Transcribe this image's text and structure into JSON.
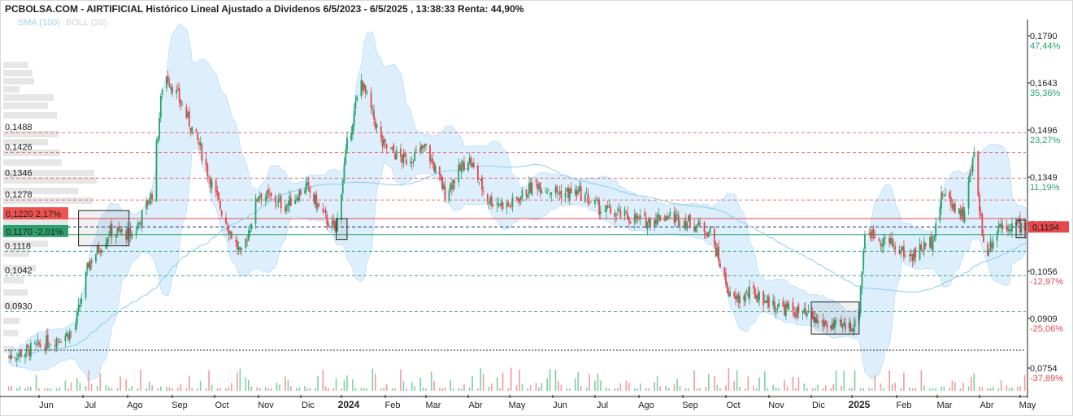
{
  "header": {
    "title": "PCBOLSA.COM - AIRTIFICIAL Histórico Lineal Ajustado a Dividenos 6/5/2023 - 6/5/2025 , 13:38:33 Renta: 44,90%",
    "sma_label": "SMA (100)",
    "boll_label": "BOLL (20)"
  },
  "colors": {
    "up": "#26a269",
    "down": "#e5474b",
    "band_fill": "#cfe8fb",
    "sma": "#8ccbee",
    "resistance": "#e5474b",
    "support": "#26a269",
    "current_price_bg": "#e5474b",
    "support_bg": "#2e9e6b",
    "resistance_bg": "#ef5350"
  },
  "right_axis": [
    {
      "price": "0,1790",
      "pct": "47,44%",
      "pct_color": "#26a269"
    },
    {
      "price": "0,1643",
      "pct": "35,36%",
      "pct_color": "#26a269"
    },
    {
      "price": "0,1496",
      "pct": "23,27%",
      "pct_color": "#26a269"
    },
    {
      "price": "0,1349",
      "pct": "11,19%",
      "pct_color": "#26a269"
    },
    {
      "price": "0,1203",
      "pct": "",
      "pct_color": "#26a269"
    },
    {
      "price": "0,1056",
      "pct": "-12,97%",
      "pct_color": "#e5474b"
    },
    {
      "price": "0,0909",
      "pct": "-25,06%",
      "pct_color": "#e5474b"
    },
    {
      "price": "0,0754",
      "pct": "-37,89%",
      "pct_color": "#e5474b"
    }
  ],
  "current_price_tag": "0,1194",
  "left_levels": [
    {
      "label": "0,1488",
      "kind": "resistance"
    },
    {
      "label": "0,1426",
      "kind": "resistance"
    },
    {
      "label": "0,1346",
      "kind": "resistance"
    },
    {
      "label": "0,1278",
      "kind": "resistance"
    },
    {
      "label": "0,1118",
      "kind": "support"
    },
    {
      "label": "0,1042",
      "kind": "support"
    },
    {
      "label": "0,0930",
      "kind": "support"
    }
  ],
  "resistance_tag": {
    "price": "0,1220",
    "pct": "2,17%"
  },
  "support_tag": {
    "price": "0,1170",
    "pct": "-2,01%"
  },
  "x_axis": [
    "Jun",
    "Jul",
    "Ago",
    "Sep",
    "Oct",
    "Nov",
    "Dic",
    "2024",
    "Feb",
    "Mar",
    "Abr",
    "May",
    "Jun",
    "Jul",
    "Ago",
    "Sep",
    "Oct",
    "Nov",
    "Dic",
    "2025",
    "Feb",
    "Mar",
    "Abr",
    "May"
  ],
  "x_axis_bold": [
    "2024",
    "2025"
  ],
  "chart_data": {
    "type": "candlestick",
    "title": "PCBOLSA.COM - AIRTIFICIAL Histórico Lineal Ajustado a Dividenos 6/5/2023 - 6/5/2025 , 13:38:33 Renta: 44,90%",
    "ylim": [
      0.0735,
      0.181
    ],
    "grid": false,
    "series_close": [
      {
        "date": "2023-05-10",
        "close": 0.079
      },
      {
        "date": "2023-05-25",
        "close": 0.081
      },
      {
        "date": "2023-06-10",
        "close": 0.084
      },
      {
        "date": "2023-06-25",
        "close": 0.087
      },
      {
        "date": "2023-07-05",
        "close": 0.108
      },
      {
        "date": "2023-07-20",
        "close": 0.118
      },
      {
        "date": "2023-08-05",
        "close": 0.117
      },
      {
        "date": "2023-08-18",
        "close": 0.13
      },
      {
        "date": "2023-08-26",
        "close": 0.168
      },
      {
        "date": "2023-09-05",
        "close": 0.16
      },
      {
        "date": "2023-09-20",
        "close": 0.145
      },
      {
        "date": "2023-10-01",
        "close": 0.13
      },
      {
        "date": "2023-10-10",
        "close": 0.12
      },
      {
        "date": "2023-10-20",
        "close": 0.11
      },
      {
        "date": "2023-11-01",
        "close": 0.13
      },
      {
        "date": "2023-11-20",
        "close": 0.126
      },
      {
        "date": "2023-12-05",
        "close": 0.132
      },
      {
        "date": "2023-12-20",
        "close": 0.122
      },
      {
        "date": "2023-12-28",
        "close": 0.118
      },
      {
        "date": "2024-01-05",
        "close": 0.145
      },
      {
        "date": "2024-01-15",
        "close": 0.165
      },
      {
        "date": "2024-01-30",
        "close": 0.145
      },
      {
        "date": "2024-02-15",
        "close": 0.14
      },
      {
        "date": "2024-03-01",
        "close": 0.144
      },
      {
        "date": "2024-03-15",
        "close": 0.13
      },
      {
        "date": "2024-04-01",
        "close": 0.141
      },
      {
        "date": "2024-04-15",
        "close": 0.128
      },
      {
        "date": "2024-05-01",
        "close": 0.126
      },
      {
        "date": "2024-05-20",
        "close": 0.133
      },
      {
        "date": "2024-06-05",
        "close": 0.13
      },
      {
        "date": "2024-06-20",
        "close": 0.13
      },
      {
        "date": "2024-07-05",
        "close": 0.125
      },
      {
        "date": "2024-07-20",
        "close": 0.123
      },
      {
        "date": "2024-08-05",
        "close": 0.121
      },
      {
        "date": "2024-08-20",
        "close": 0.123
      },
      {
        "date": "2024-09-05",
        "close": 0.121
      },
      {
        "date": "2024-09-20",
        "close": 0.118
      },
      {
        "date": "2024-10-05",
        "close": 0.096
      },
      {
        "date": "2024-10-20",
        "close": 0.099
      },
      {
        "date": "2024-11-05",
        "close": 0.095
      },
      {
        "date": "2024-11-20",
        "close": 0.093
      },
      {
        "date": "2024-12-05",
        "close": 0.09
      },
      {
        "date": "2024-12-20",
        "close": 0.088
      },
      {
        "date": "2025-01-05",
        "close": 0.089
      },
      {
        "date": "2025-01-10",
        "close": 0.118
      },
      {
        "date": "2025-01-25",
        "close": 0.115
      },
      {
        "date": "2025-02-10",
        "close": 0.11
      },
      {
        "date": "2025-02-25",
        "close": 0.115
      },
      {
        "date": "2025-03-05",
        "close": 0.13
      },
      {
        "date": "2025-03-20",
        "close": 0.123
      },
      {
        "date": "2025-03-28",
        "close": 0.142
      },
      {
        "date": "2025-04-05",
        "close": 0.11
      },
      {
        "date": "2025-04-15",
        "close": 0.12
      },
      {
        "date": "2025-04-28",
        "close": 0.12
      },
      {
        "date": "2025-05-06",
        "close": 0.1194
      }
    ],
    "reference_lines": [
      0.1488,
      0.1426,
      0.1346,
      0.1278,
      0.122,
      0.1194,
      0.117,
      0.1118,
      0.1042,
      0.093
    ]
  }
}
